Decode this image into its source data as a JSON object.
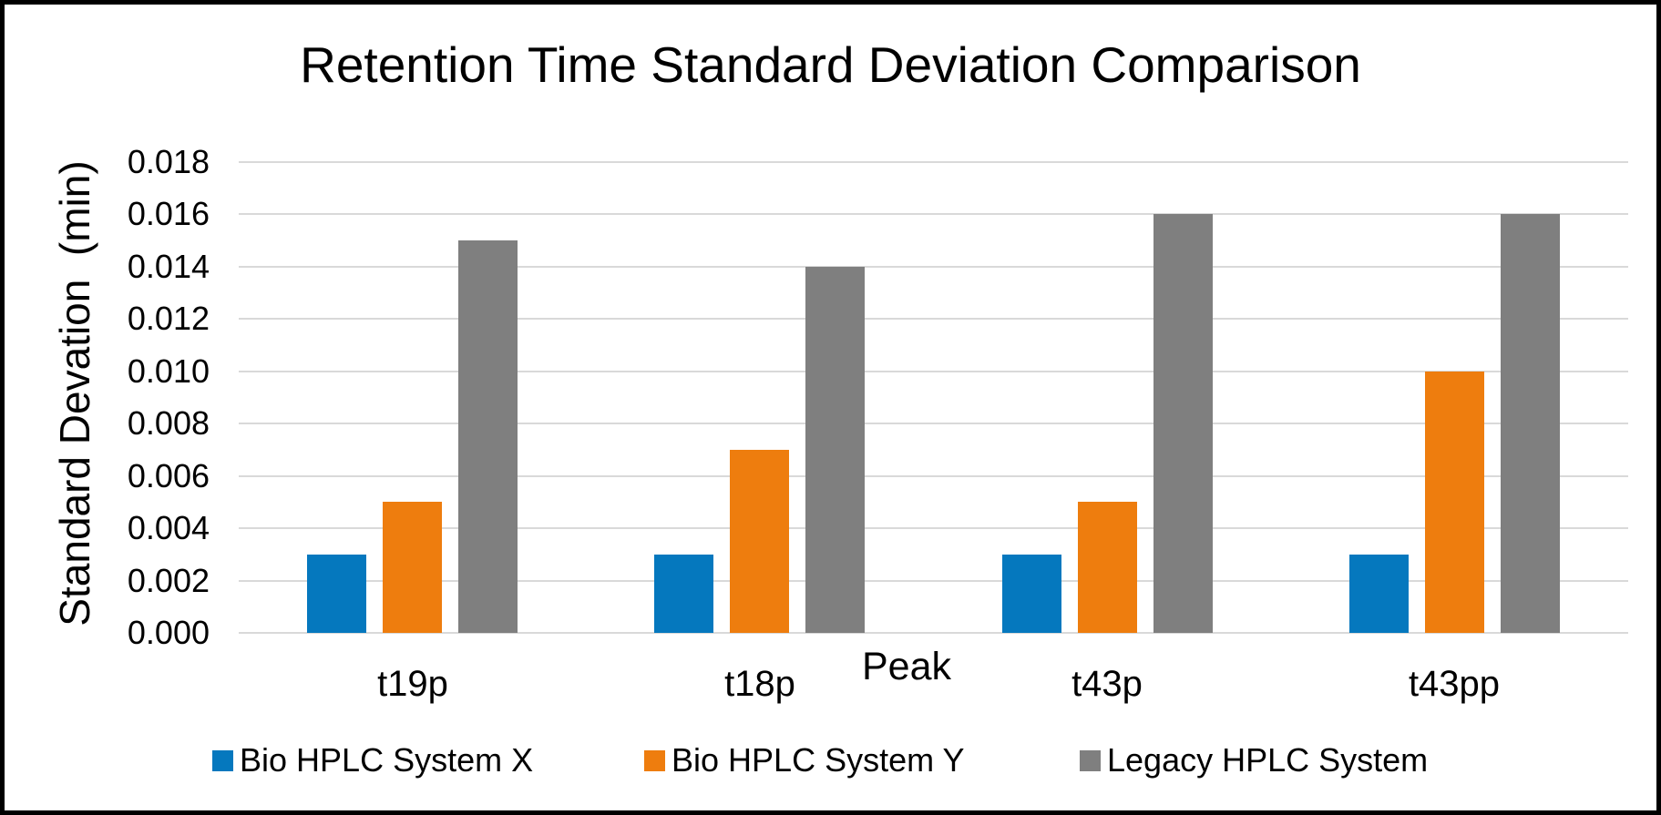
{
  "chart_data": {
    "type": "bar",
    "title": "Retention Time Standard Deviation Comparison",
    "xlabel": "Peak",
    "ylabel": "Standard Devation  (min)",
    "categories": [
      "t19p",
      "t18p",
      "t43p",
      "t43pp"
    ],
    "series": [
      {
        "name": "Bio HPLC System X",
        "color": "#0578BE",
        "values": [
          0.003,
          0.003,
          0.003,
          0.003
        ]
      },
      {
        "name": "Bio HPLC System Y",
        "color": "#EE7D0E",
        "values": [
          0.005,
          0.007,
          0.005,
          0.01
        ]
      },
      {
        "name": "Legacy HPLC System",
        "color": "#7F7F7F",
        "values": [
          0.015,
          0.014,
          0.016,
          0.016
        ]
      }
    ],
    "ylim": [
      0,
      0.018
    ],
    "ytick_step": 0.002,
    "ytick_labels": [
      "0.000",
      "0.002",
      "0.004",
      "0.006",
      "0.008",
      "0.010",
      "0.012",
      "0.014",
      "0.016",
      "0.018"
    ],
    "grid": true,
    "gridline_color": "#D9D9D9",
    "background_color": "#FFFFFF",
    "text_color": "#000000",
    "legend_position": "bottom"
  }
}
